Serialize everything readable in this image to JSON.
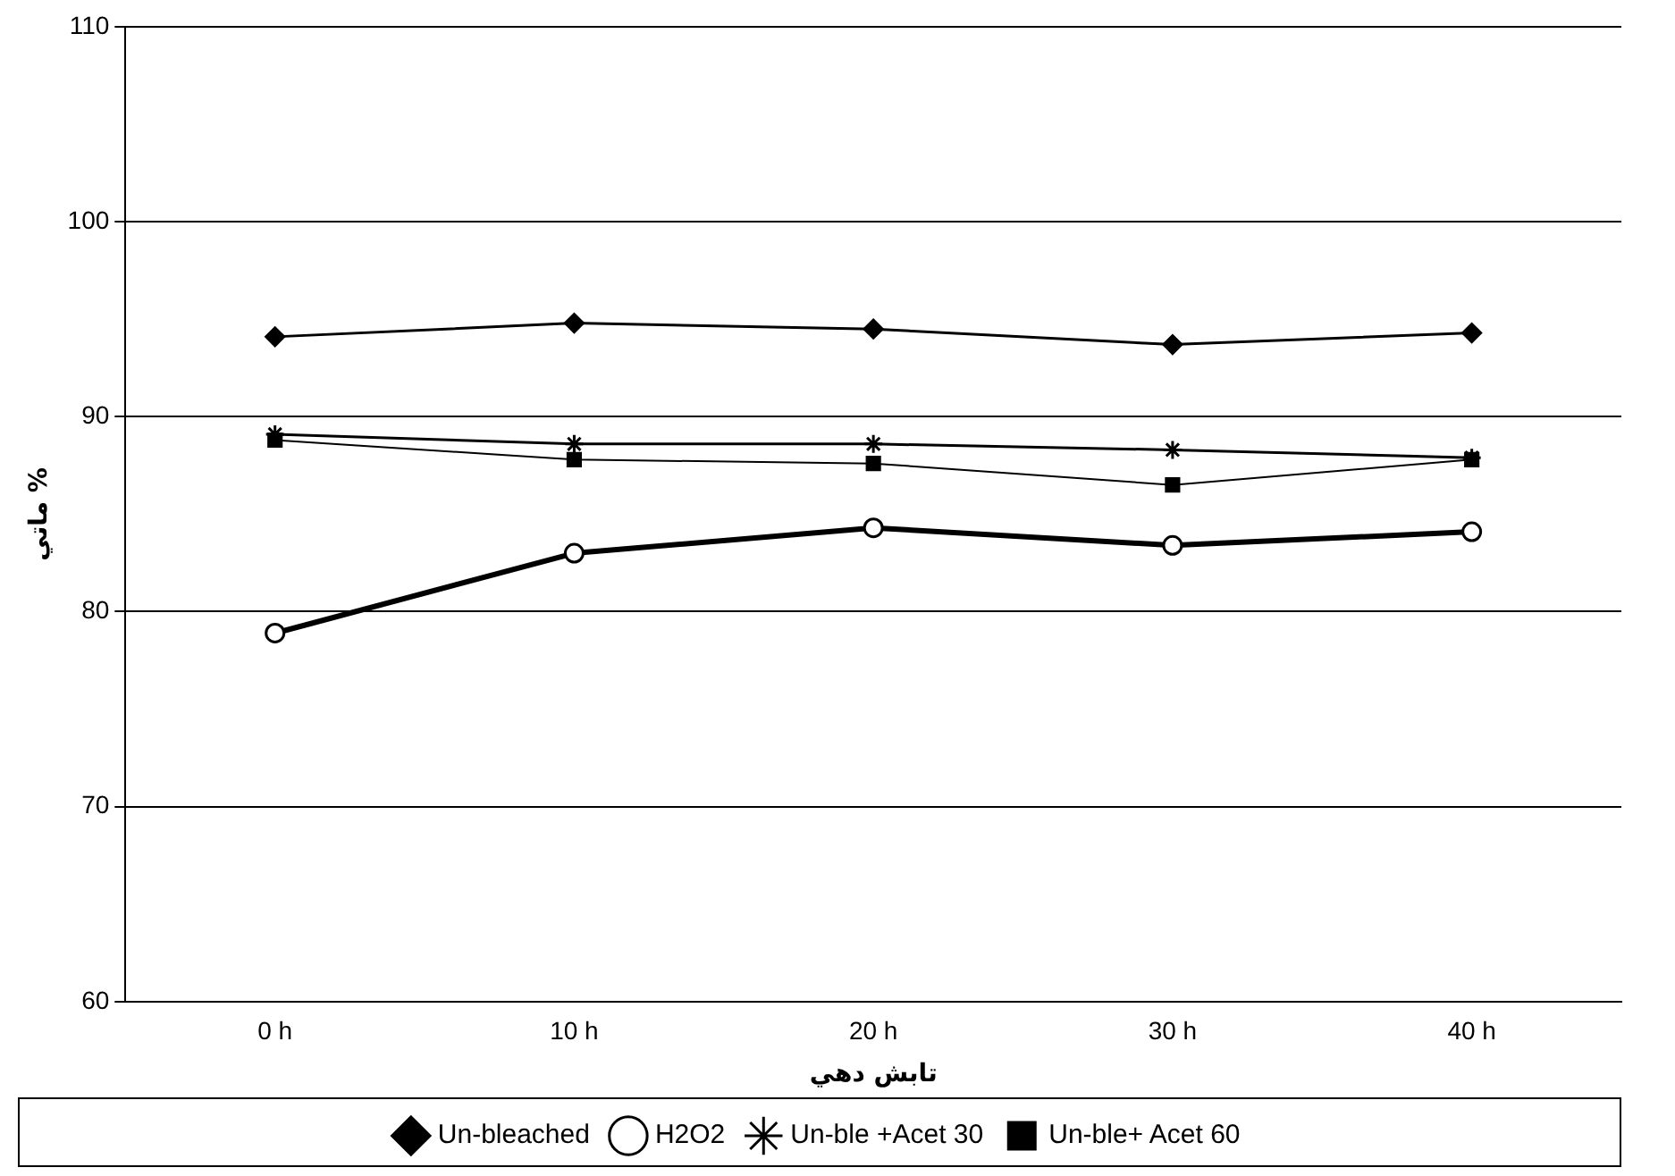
{
  "chart_data": {
    "type": "line",
    "xlabel": "تابش دهي",
    "ylabel": "ماتي %",
    "categories": [
      "0 h",
      "10 h",
      "20 h",
      "30 h",
      "40 h"
    ],
    "series": [
      {
        "name": "Un-bleached",
        "color": "#000000",
        "marker": "diamond",
        "values": [
          94.1,
          94.8,
          94.5,
          93.7,
          94.3
        ]
      },
      {
        "name": "H2O2",
        "color": "#000000",
        "marker": "circle",
        "values": [
          78.9,
          83.0,
          84.3,
          83.4,
          84.1
        ]
      },
      {
        "name": "Un-ble +Acet 30",
        "color": "#000000",
        "marker": "cross",
        "values": [
          89.1,
          88.6,
          88.6,
          88.3,
          87.9
        ]
      },
      {
        "name": "Un-ble+ Acet 60",
        "color": "#000000",
        "marker": "square",
        "values": [
          88.8,
          87.8,
          87.6,
          86.5,
          87.8
        ]
      }
    ],
    "ylim": [
      60,
      110
    ],
    "yticks": [
      60,
      70,
      80,
      90,
      100,
      110
    ],
    "grid": "y",
    "legend": "bottom"
  }
}
